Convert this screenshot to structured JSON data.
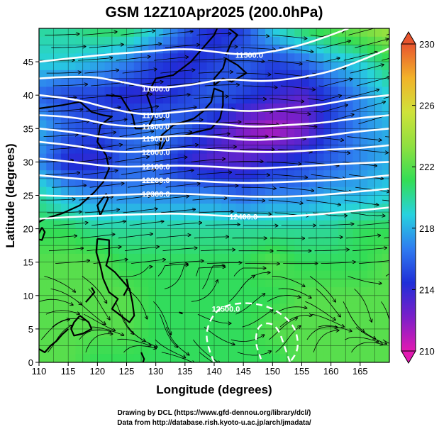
{
  "title": "GSM 12Z10Apr2025 (200.0hPa)",
  "credits": [
    "Drawing by DCL (https://www.gfd-dennou.org/library/dcl/)",
    "Data from http://database.rish.kyoto-u.ac.jp/arch/jmadata/"
  ],
  "chart_data": {
    "type": "heatmap",
    "title": "GSM 12Z10Apr2025 (200.0hPa)",
    "xlabel": "Longitude (degrees)",
    "ylabel": "Latitude  (degrees)",
    "xlim": [
      110,
      170
    ],
    "ylim": [
      0,
      50
    ],
    "xticks": [
      110,
      115,
      120,
      125,
      130,
      135,
      140,
      145,
      150,
      155,
      160,
      165
    ],
    "yticks": [
      0,
      5,
      10,
      15,
      20,
      25,
      30,
      35,
      40,
      45
    ],
    "grid": true,
    "colorbar": {
      "min": 210,
      "max": 230,
      "ticks": [
        210,
        214,
        218,
        222,
        226,
        230
      ],
      "colors": [
        "#e21ab2",
        "#7b1fc9",
        "#1f2ed8",
        "#2f7cf0",
        "#27d2df",
        "#33dd55",
        "#8fe040",
        "#cfe23a",
        "#f2b329",
        "#e8552e"
      ]
    },
    "color_field": [
      [
        220,
        220,
        221,
        221,
        219,
        216,
        214,
        215,
        219,
        221,
        222,
        223,
        224
      ],
      [
        219,
        219,
        218,
        217,
        215,
        214,
        215,
        216,
        215,
        216,
        218,
        219,
        221
      ],
      [
        216,
        215,
        215,
        214,
        214,
        215,
        216,
        215,
        214,
        213,
        215,
        217,
        219
      ],
      [
        218,
        216,
        215,
        216,
        217,
        216,
        214,
        212,
        211,
        212,
        215,
        217,
        218
      ],
      [
        217,
        214,
        214,
        216,
        216,
        214,
        213,
        213,
        214,
        215,
        216,
        217,
        218
      ],
      [
        220,
        218,
        217,
        217,
        217,
        217,
        217,
        216,
        217,
        217,
        218,
        218,
        219
      ],
      [
        221,
        221,
        220,
        220,
        220,
        220,
        220,
        220,
        220,
        220,
        220,
        221,
        221
      ],
      [
        222,
        222,
        222,
        221,
        221,
        221,
        221,
        221,
        222,
        221,
        221,
        221,
        222
      ],
      [
        222,
        222,
        222,
        222,
        221,
        221,
        221,
        221,
        221,
        222,
        222,
        222,
        222
      ],
      [
        222,
        222,
        222,
        222,
        221,
        221,
        221,
        221,
        222,
        222,
        222,
        222,
        222
      ],
      [
        222,
        222,
        221,
        221,
        221,
        221,
        221,
        221,
        221,
        222,
        222,
        222,
        222
      ]
    ],
    "color_field_lats": [
      50,
      45,
      40,
      35,
      30,
      25,
      20,
      15,
      10,
      5,
      0
    ],
    "color_field_lons": [
      110,
      115,
      120,
      125,
      130,
      135,
      140,
      145,
      150,
      155,
      160,
      165,
      170
    ],
    "contours": [
      {
        "label": "11500.0",
        "label_at": [
          146,
          46
        ],
        "points": [
          [
            110,
            45
          ],
          [
            120,
            46
          ],
          [
            128,
            46.5
          ],
          [
            135,
            47
          ],
          [
            140,
            46.5
          ],
          [
            145,
            46
          ],
          [
            150,
            46.5
          ],
          [
            155,
            47.5
          ],
          [
            160,
            49
          ],
          [
            163,
            50
          ]
        ]
      },
      {
        "label": "11600.0",
        "label_at": [
          130,
          41
        ],
        "points": [
          [
            110,
            42.5
          ],
          [
            118,
            43
          ],
          [
            124,
            42
          ],
          [
            130,
            41
          ],
          [
            136,
            41.5
          ],
          [
            142,
            42.5
          ],
          [
            148,
            42
          ],
          [
            154,
            42.5
          ],
          [
            160,
            43.5
          ],
          [
            166,
            45.5
          ],
          [
            170,
            47
          ]
        ]
      },
      {
        "label": "11700.0",
        "label_at": [
          130,
          37
        ],
        "points": [
          [
            110,
            40
          ],
          [
            116,
            39.5
          ],
          [
            122,
            38
          ],
          [
            128,
            37
          ],
          [
            134,
            37.5
          ],
          [
            140,
            38
          ],
          [
            146,
            37.5
          ],
          [
            152,
            38
          ],
          [
            158,
            38.5
          ],
          [
            164,
            39.5
          ],
          [
            170,
            40
          ]
        ]
      },
      {
        "label": "11800.0",
        "label_at": [
          130,
          35.3
        ],
        "points": [
          [
            110,
            37
          ],
          [
            116,
            36.8
          ],
          [
            122,
            35.5
          ],
          [
            128,
            35.3
          ],
          [
            134,
            35.8
          ],
          [
            140,
            35.8
          ],
          [
            146,
            35.2
          ],
          [
            152,
            35.5
          ],
          [
            158,
            35.8
          ],
          [
            164,
            36.5
          ],
          [
            170,
            37
          ]
        ]
      },
      {
        "label": "11900.0",
        "label_at": [
          130,
          33.5
        ],
        "points": [
          [
            110,
            35
          ],
          [
            116,
            34.5
          ],
          [
            122,
            33.5
          ],
          [
            128,
            33.5
          ],
          [
            134,
            34
          ],
          [
            140,
            33.8
          ],
          [
            146,
            33.2
          ],
          [
            152,
            33.5
          ],
          [
            158,
            33.8
          ],
          [
            164,
            34.5
          ],
          [
            170,
            35
          ]
        ]
      },
      {
        "label": "12000.0",
        "label_at": [
          130,
          31.5
        ],
        "points": [
          [
            110,
            33
          ],
          [
            116,
            32.5
          ],
          [
            122,
            31.5
          ],
          [
            128,
            31.5
          ],
          [
            134,
            32
          ],
          [
            140,
            31.8
          ],
          [
            146,
            31.5
          ],
          [
            152,
            31.5
          ],
          [
            158,
            31.8
          ],
          [
            164,
            32
          ],
          [
            170,
            32.5
          ]
        ]
      },
      {
        "label": "12100.0",
        "label_at": [
          130,
          29.3
        ],
        "points": [
          [
            110,
            30.5
          ],
          [
            116,
            30
          ],
          [
            122,
            29.3
          ],
          [
            128,
            29.3
          ],
          [
            134,
            29.5
          ],
          [
            140,
            29.3
          ],
          [
            146,
            29
          ],
          [
            152,
            29.2
          ],
          [
            158,
            29.5
          ],
          [
            164,
            29.8
          ],
          [
            170,
            30
          ]
        ]
      },
      {
        "label": "12200.0",
        "label_at": [
          130,
          27.3
        ],
        "points": [
          [
            110,
            28
          ],
          [
            116,
            27.5
          ],
          [
            122,
            27.2
          ],
          [
            128,
            27.3
          ],
          [
            134,
            27.3
          ],
          [
            140,
            27
          ],
          [
            146,
            26.8
          ],
          [
            152,
            27
          ],
          [
            158,
            27.2
          ],
          [
            164,
            27.5
          ],
          [
            170,
            28
          ]
        ]
      },
      {
        "label": "12300.0",
        "label_at": [
          130,
          25.2
        ],
        "points": [
          [
            110,
            25
          ],
          [
            116,
            24.8
          ],
          [
            122,
            25
          ],
          [
            128,
            25.2
          ],
          [
            134,
            25.3
          ],
          [
            140,
            25
          ],
          [
            146,
            24.8
          ],
          [
            152,
            24.8
          ],
          [
            158,
            25
          ],
          [
            164,
            25.5
          ],
          [
            170,
            26
          ]
        ]
      },
      {
        "label": "12400.0",
        "label_at": [
          145,
          21.8
        ],
        "points": [
          [
            110,
            21.5
          ],
          [
            116,
            21.8
          ],
          [
            122,
            22
          ],
          [
            128,
            22.2
          ],
          [
            134,
            22.3
          ],
          [
            140,
            22
          ],
          [
            145,
            21.8
          ],
          [
            150,
            21.8
          ],
          [
            156,
            22
          ],
          [
            162,
            22.5
          ],
          [
            168,
            23
          ],
          [
            170,
            23.2
          ]
        ]
      },
      {
        "label": "12500.0",
        "label_at": [
          142,
          8
        ],
        "dashed": true,
        "points": [
          [
            140,
            0
          ],
          [
            138.5,
            3
          ],
          [
            139,
            6
          ],
          [
            141,
            8.3
          ],
          [
            145,
            9
          ],
          [
            149,
            8.5
          ],
          [
            152,
            7
          ],
          [
            154,
            5
          ],
          [
            154.5,
            2
          ],
          [
            153,
            0
          ]
        ]
      },
      {
        "dashed": true,
        "points": [
          [
            153,
            0
          ],
          [
            152,
            2.5
          ],
          [
            151,
            5
          ],
          [
            149.5,
            6
          ],
          [
            147.5,
            5.5
          ],
          [
            147,
            3
          ],
          [
            148,
            0.5
          ]
        ]
      }
    ]
  }
}
